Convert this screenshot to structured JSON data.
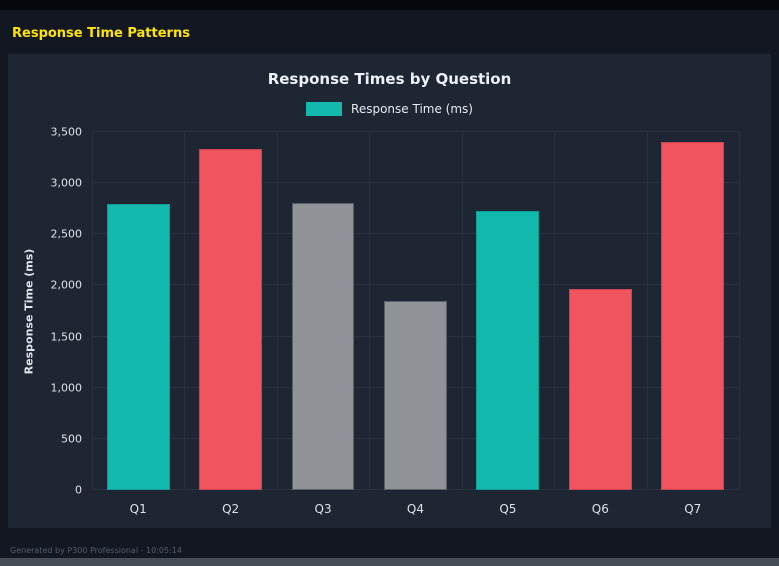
{
  "page": {
    "title": "Response Time Patterns",
    "footer": "Generated by P300 Professional - 10:05:14"
  },
  "colors": {
    "page_bg": "#131722",
    "panel_bg": "#1e2533",
    "accent_yellow": "#ffe400",
    "grid_line": "#2a3142",
    "teal": "#12b9ac",
    "red": "#f0545e",
    "gray": "#8f9296"
  },
  "chart_data": {
    "type": "bar",
    "title": "Response Times by Question",
    "legend": [
      {
        "label": "Response Time (ms)",
        "color": "#12b9ac"
      }
    ],
    "legend_position": "top",
    "categories": [
      "Q1",
      "Q2",
      "Q3",
      "Q4",
      "Q5",
      "Q6",
      "Q7"
    ],
    "values": [
      2800,
      3330,
      2805,
      1850,
      2730,
      1965,
      3400
    ],
    "bar_colors": [
      "#12b9ac",
      "#f0545e",
      "#8f9296",
      "#8f9296",
      "#12b9ac",
      "#f0545e",
      "#f0545e"
    ],
    "bar_border_colors": [
      "#0e9c91",
      "#cc4450",
      "#5c5f63",
      "#5c5f63",
      "#0e9c91",
      "#cc4450",
      "#cc4450"
    ],
    "xlabel": "",
    "ylabel": "Response Time (ms)",
    "ylim": [
      0,
      3500
    ],
    "ytick_step": 500,
    "grid": true
  }
}
